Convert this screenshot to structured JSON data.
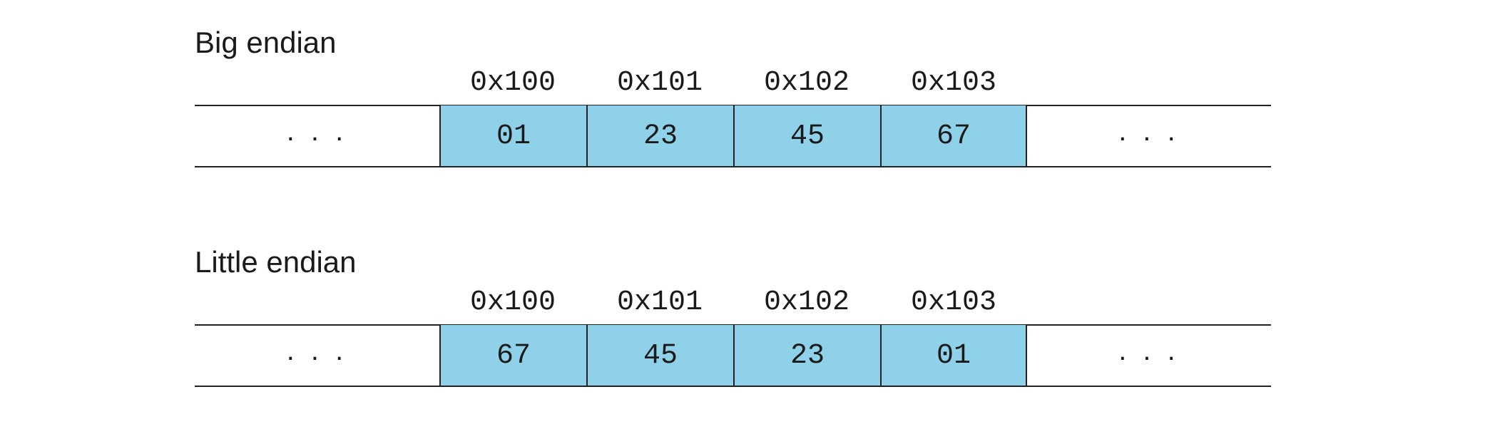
{
  "big_endian": {
    "title": "Big endian",
    "addresses": [
      "0x100",
      "0x101",
      "0x102",
      "0x103"
    ],
    "bytes": [
      "01",
      "23",
      "45",
      "67"
    ],
    "ellipsis_left": ". . .",
    "ellipsis_right": ". . ."
  },
  "little_endian": {
    "title": "Little endian",
    "addresses": [
      "0x100",
      "0x101",
      "0x102",
      "0x103"
    ],
    "bytes": [
      "67",
      "45",
      "23",
      "01"
    ],
    "ellipsis_left": ". . .",
    "ellipsis_right": ". . ."
  },
  "colors": {
    "byte_fill": "#8ed1e9",
    "line": "#222222"
  }
}
